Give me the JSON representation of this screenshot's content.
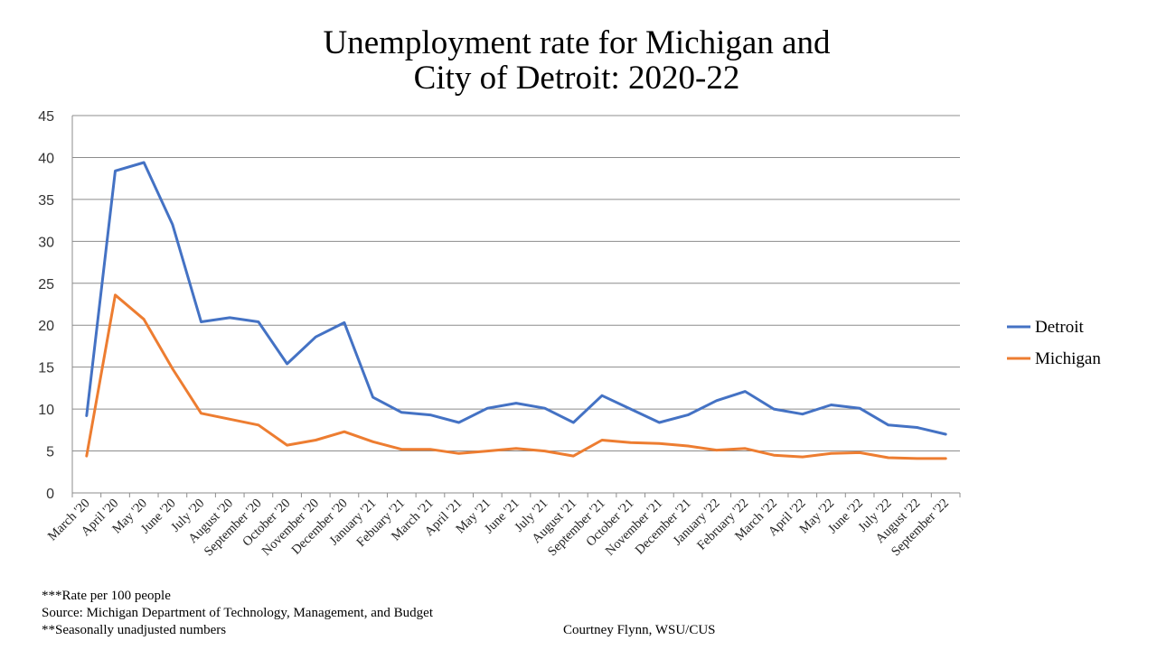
{
  "chart_data": {
    "type": "line",
    "title_lines": [
      "Unemployment rate for Michigan and",
      "City of Detroit: 2020-22"
    ],
    "xlabel": "",
    "ylabel": "",
    "ylim": [
      0,
      45
    ],
    "yticks": [
      0,
      5,
      10,
      15,
      20,
      25,
      30,
      35,
      40,
      45
    ],
    "grid": true,
    "legend_position": "right",
    "categories": [
      "March '20",
      "April '20",
      "May '20",
      "June '20",
      "July '20",
      "August '20",
      "September '20",
      "October '20",
      "November '20",
      "December '20",
      "January '21",
      "Febuary '21",
      "March '21",
      "April '21",
      "May '21",
      "June '21",
      "July '21",
      "August '21",
      "September '21",
      "October '21",
      "November '21",
      "December '21",
      "January '22",
      "February '22",
      "March '22",
      "April '22",
      "May '22",
      "June '22",
      "July '22",
      "August '22",
      "September '22"
    ],
    "series": [
      {
        "name": "Detroit",
        "color": "#4472C4",
        "values": [
          9.2,
          38.4,
          39.4,
          32.0,
          20.4,
          20.9,
          20.4,
          15.4,
          18.6,
          20.3,
          11.4,
          9.6,
          9.3,
          8.4,
          10.1,
          10.7,
          10.1,
          8.4,
          11.6,
          10.0,
          8.4,
          9.3,
          11.0,
          12.1,
          10.0,
          9.4,
          10.5,
          10.1,
          8.1,
          7.8,
          7.0
        ]
      },
      {
        "name": "Michigan",
        "color": "#ED7D31",
        "values": [
          4.4,
          23.6,
          20.7,
          14.8,
          9.5,
          8.8,
          8.1,
          5.7,
          6.3,
          7.3,
          6.1,
          5.2,
          5.2,
          4.7,
          5.0,
          5.3,
          5.0,
          4.4,
          6.3,
          6.0,
          5.9,
          5.6,
          5.1,
          5.3,
          4.5,
          4.3,
          4.7,
          4.8,
          4.2,
          4.1,
          4.1
        ]
      }
    ]
  },
  "footnotes": {
    "rate_note": "***Rate per 100 people",
    "source": "Source: Michigan Department of Technology, Management, and Budget",
    "adjustment_note": "**Seasonally unadjusted numbers",
    "credit": "Courtney Flynn, WSU/CUS"
  }
}
